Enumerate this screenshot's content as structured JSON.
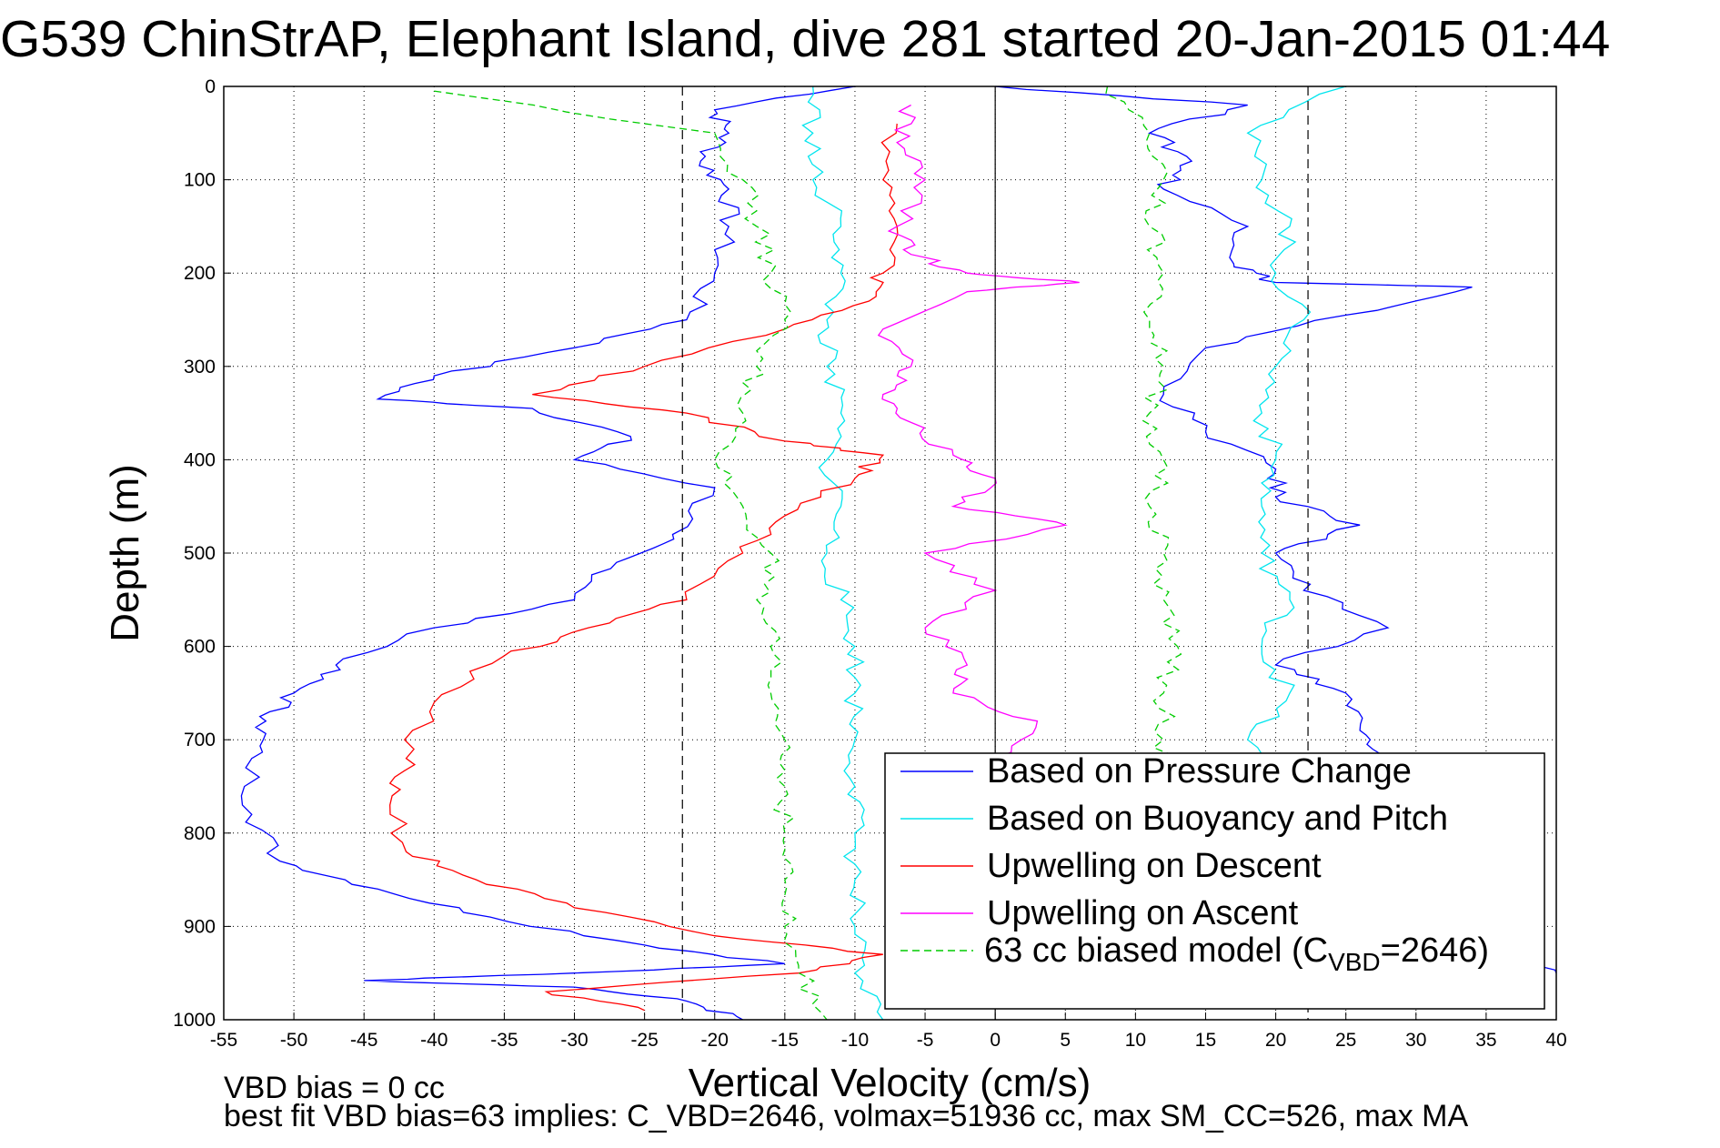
{
  "chart_data": {
    "type": "line",
    "title": "G539 ChinStrAP, Elephant Island, dive 281 started 20-Jan-2015 01:44",
    "xlabel": "Vertical Velocity (cm/s)",
    "ylabel": "Depth (m)",
    "xlim": [
      -55,
      40
    ],
    "ylim": [
      0,
      1000
    ],
    "y_reversed": true,
    "grid": true,
    "legend_position": "bottom-right",
    "xticks": [
      -55,
      -50,
      -45,
      -40,
      -35,
      -30,
      -25,
      -20,
      -15,
      -10,
      -5,
      0,
      5,
      10,
      15,
      20,
      25,
      30,
      35,
      40
    ],
    "yticks": [
      0,
      100,
      200,
      300,
      400,
      500,
      600,
      700,
      800,
      900,
      1000
    ],
    "reference_lines": {
      "dashed_x": [
        -22.3,
        22.3
      ],
      "solid_x": [
        0
      ]
    },
    "notes": [
      "VBD bias = 0 cc",
      "best fit VBD bias=63 implies: C_VBD=2646, volmax=51936 cc, max SM_CC=526, max MA"
    ],
    "legend": [
      {
        "label": "Based on Pressure Change",
        "color": "#0000ff",
        "dash": "solid"
      },
      {
        "label": "Based on Buoyancy and Pitch",
        "color": "#00e5ee",
        "dash": "solid"
      },
      {
        "label": "Upwelling on Descent",
        "color": "#ff0000",
        "dash": "solid"
      },
      {
        "label": "Upwelling on Ascent",
        "color": "#ff00ff",
        "dash": "solid"
      },
      {
        "label": "63 cc biased model (C",
        "label_sub": "VBD",
        "label_tail": "=2646)",
        "color": "#00cc00",
        "dash": "dashed"
      }
    ],
    "series": [
      {
        "name": "Based on Pressure Change",
        "color": "#0000ff",
        "dash": "",
        "points": [
          [
            -10,
            0
          ],
          [
            -20,
            25
          ],
          [
            -19,
            50
          ],
          [
            -21,
            80
          ],
          [
            -19,
            110
          ],
          [
            -19,
            150
          ],
          [
            -20,
            200
          ],
          [
            -22,
            250
          ],
          [
            -30,
            280
          ],
          [
            -40,
            310
          ],
          [
            -44,
            335
          ],
          [
            -33,
            345
          ],
          [
            -26,
            375
          ],
          [
            -30,
            400
          ],
          [
            -20,
            430
          ],
          [
            -23,
            480
          ],
          [
            -27,
            510
          ],
          [
            -30,
            550
          ],
          [
            -40,
            580
          ],
          [
            -47,
            620
          ],
          [
            -50,
            650
          ],
          [
            -52,
            680
          ],
          [
            -53,
            720
          ],
          [
            -53,
            780
          ],
          [
            -51,
            830
          ],
          [
            -44,
            860
          ],
          [
            -36,
            890
          ],
          [
            -25,
            920
          ],
          [
            -15,
            940
          ],
          [
            -30,
            950
          ],
          [
            -45,
            958
          ],
          [
            -30,
            965
          ],
          [
            -22,
            980
          ],
          [
            -18,
            1000
          ]
        ]
      },
      {
        "name": "Based on Pressure Change (ascent)",
        "color": "#0000ff",
        "dash": "",
        "points": [
          [
            0,
            0
          ],
          [
            18,
            20
          ],
          [
            11,
            50
          ],
          [
            14,
            80
          ],
          [
            12,
            110
          ],
          [
            18,
            150
          ],
          [
            17,
            190
          ],
          [
            20,
            210
          ],
          [
            34,
            215
          ],
          [
            25,
            245
          ],
          [
            15,
            280
          ],
          [
            12,
            330
          ],
          [
            15,
            370
          ],
          [
            20,
            410
          ],
          [
            20,
            440
          ],
          [
            26,
            470
          ],
          [
            20,
            500
          ],
          [
            22,
            540
          ],
          [
            28,
            580
          ],
          [
            20,
            620
          ],
          [
            25,
            650
          ],
          [
            26,
            690
          ],
          [
            27,
            720
          ],
          [
            34,
            850
          ],
          [
            35,
            930
          ],
          [
            40,
            950
          ]
        ]
      },
      {
        "name": "Based on Buoyancy and Pitch",
        "color": "#00e5ee",
        "dash": "",
        "points": [
          [
            -13,
            0
          ],
          [
            -13,
            50
          ],
          [
            -13,
            100
          ],
          [
            -11,
            150
          ],
          [
            -11,
            200
          ],
          [
            -12,
            250
          ],
          [
            -12,
            300
          ],
          [
            -11,
            350
          ],
          [
            -12,
            400
          ],
          [
            -11,
            450
          ],
          [
            -12,
            500
          ],
          [
            -11,
            550
          ],
          [
            -10,
            600
          ],
          [
            -10,
            650
          ],
          [
            -10,
            700
          ],
          [
            -10,
            750
          ],
          [
            -10,
            800
          ],
          [
            -10,
            850
          ],
          [
            -10,
            900
          ],
          [
            -10,
            950
          ],
          [
            -8,
            1000
          ]
        ]
      },
      {
        "name": "Based on Buoyancy and Pitch (ascent)",
        "color": "#00e5ee",
        "dash": "",
        "points": [
          [
            25,
            0
          ],
          [
            18,
            50
          ],
          [
            19,
            100
          ],
          [
            21,
            150
          ],
          [
            20,
            200
          ],
          [
            22,
            250
          ],
          [
            20,
            300
          ],
          [
            19,
            350
          ],
          [
            20,
            400
          ],
          [
            19,
            450
          ],
          [
            19,
            500
          ],
          [
            21,
            550
          ],
          [
            19,
            600
          ],
          [
            21,
            650
          ],
          [
            18,
            700
          ],
          [
            20,
            750
          ],
          [
            19,
            800
          ],
          [
            20,
            850
          ],
          [
            19,
            900
          ],
          [
            20,
            950
          ]
        ]
      },
      {
        "name": "Upwelling on Descent",
        "color": "#ff0000",
        "dash": "",
        "points": [
          [
            -7,
            40
          ],
          [
            -8,
            100
          ],
          [
            -7,
            150
          ],
          [
            -8,
            200
          ],
          [
            -9,
            230
          ],
          [
            -15,
            260
          ],
          [
            -25,
            300
          ],
          [
            -33,
            330
          ],
          [
            -22,
            350
          ],
          [
            -15,
            380
          ],
          [
            -8,
            395
          ],
          [
            -10,
            420
          ],
          [
            -15,
            460
          ],
          [
            -18,
            500
          ],
          [
            -22,
            550
          ],
          [
            -29,
            580
          ],
          [
            -35,
            610
          ],
          [
            -40,
            660
          ],
          [
            -42,
            720
          ],
          [
            -43,
            760
          ],
          [
            -42,
            820
          ],
          [
            -37,
            850
          ],
          [
            -30,
            880
          ],
          [
            -20,
            910
          ],
          [
            -8,
            930
          ],
          [
            -14,
            950
          ],
          [
            -32,
            970
          ],
          [
            -25,
            990
          ]
        ]
      },
      {
        "name": "Upwelling on Ascent",
        "color": "#ff00ff",
        "dash": "",
        "points": [
          [
            -6,
            20
          ],
          [
            -7,
            60
          ],
          [
            -5,
            100
          ],
          [
            -7,
            150
          ],
          [
            -6,
            180
          ],
          [
            -2,
            200
          ],
          [
            6,
            210
          ],
          [
            -2,
            220
          ],
          [
            -8,
            260
          ],
          [
            -6,
            300
          ],
          [
            -8,
            330
          ],
          [
            -6,
            360
          ],
          [
            -3,
            395
          ],
          [
            0,
            420
          ],
          [
            -3,
            450
          ],
          [
            5,
            470
          ],
          [
            -5,
            500
          ],
          [
            0,
            540
          ],
          [
            -5,
            580
          ],
          [
            -2,
            620
          ],
          [
            -3,
            650
          ],
          [
            3,
            680
          ],
          [
            0,
            720
          ]
        ]
      },
      {
        "name": "63 cc biased model",
        "color": "#00cc00",
        "dash": "8,5",
        "points": [
          [
            -40,
            5
          ],
          [
            -20,
            50
          ],
          [
            -18,
            100
          ],
          [
            -17,
            150
          ],
          [
            -16,
            200
          ],
          [
            -15,
            250
          ],
          [
            -17,
            300
          ],
          [
            -18,
            350
          ],
          [
            -20,
            400
          ],
          [
            -18,
            450
          ],
          [
            -16,
            500
          ],
          [
            -17,
            550
          ],
          [
            -16,
            600
          ],
          [
            -16,
            650
          ],
          [
            -15,
            700
          ],
          [
            -15,
            750
          ],
          [
            -15,
            800
          ],
          [
            -15,
            850
          ],
          [
            -15,
            900
          ],
          [
            -14,
            950
          ],
          [
            -12,
            1000
          ]
        ]
      },
      {
        "name": "63 cc biased model (ascent)",
        "color": "#00cc00",
        "dash": "8,5",
        "points": [
          [
            8,
            0
          ],
          [
            11,
            50
          ],
          [
            12,
            100
          ],
          [
            11,
            150
          ],
          [
            12,
            200
          ],
          [
            11,
            250
          ],
          [
            12,
            300
          ],
          [
            11,
            350
          ],
          [
            12,
            400
          ],
          [
            11,
            450
          ],
          [
            12,
            500
          ],
          [
            12,
            550
          ],
          [
            13,
            600
          ],
          [
            12,
            650
          ],
          [
            12,
            700
          ],
          [
            12,
            750
          ]
        ]
      }
    ]
  }
}
